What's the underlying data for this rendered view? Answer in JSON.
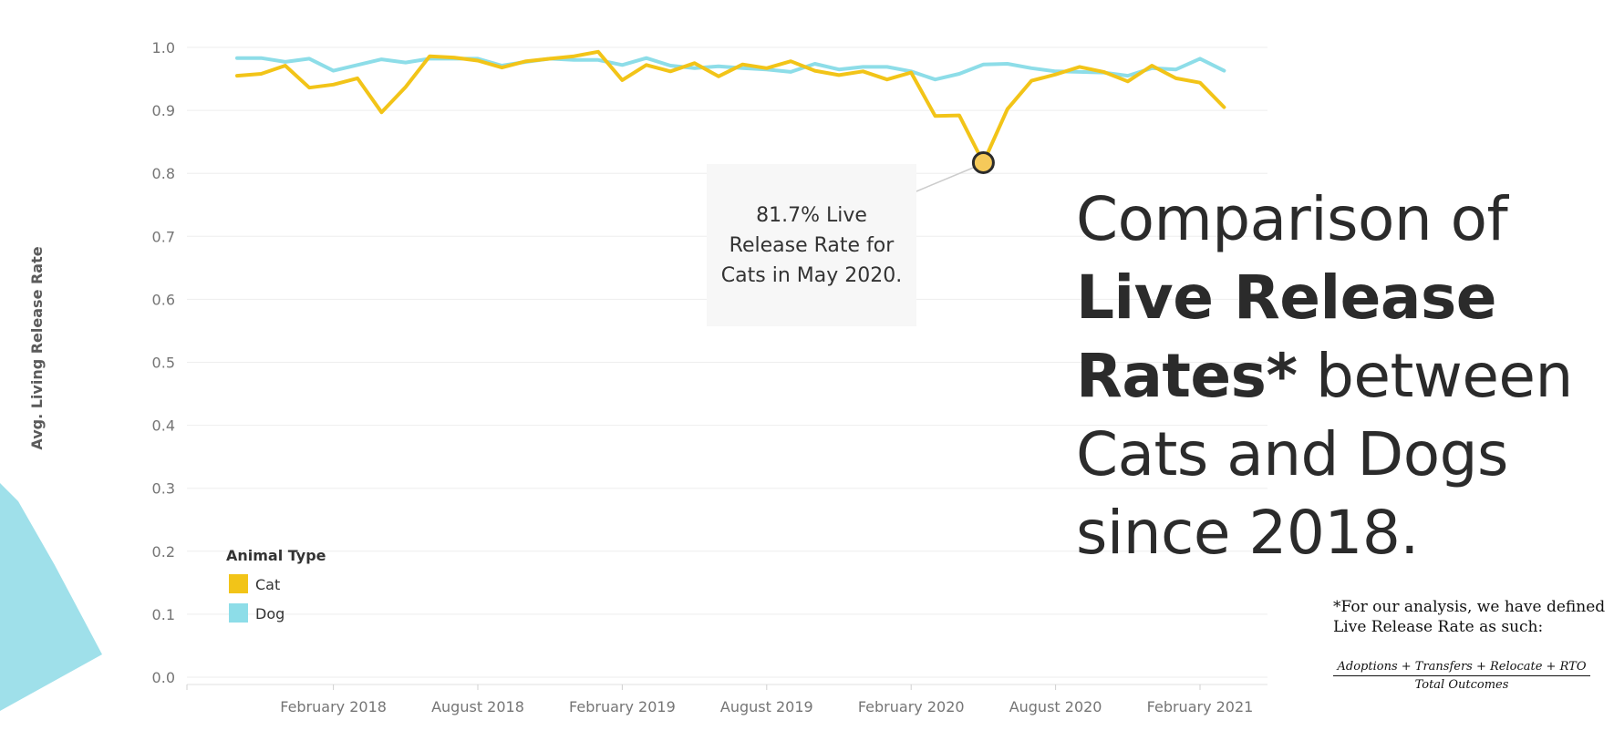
{
  "chart_data": {
    "type": "line",
    "ylabel": "Avg. Living Release Rate",
    "xlabel": "",
    "ylim": [
      0,
      1.0
    ],
    "y_ticks": [
      "0.0",
      "0.1",
      "0.2",
      "0.3",
      "0.4",
      "0.5",
      "0.6",
      "0.7",
      "0.8",
      "0.9",
      "1.0"
    ],
    "x_tick_labels": [
      "February 2018",
      "August 2018",
      "February 2019",
      "August 2019",
      "February 2020",
      "August 2020",
      "February 2021"
    ],
    "x": [
      "2017-10",
      "2017-11",
      "2017-12",
      "2018-01",
      "2018-02",
      "2018-03",
      "2018-04",
      "2018-05",
      "2018-06",
      "2018-07",
      "2018-08",
      "2018-09",
      "2018-10",
      "2018-11",
      "2018-12",
      "2019-01",
      "2019-02",
      "2019-03",
      "2019-04",
      "2019-05",
      "2019-06",
      "2019-07",
      "2019-08",
      "2019-09",
      "2019-10",
      "2019-11",
      "2019-12",
      "2020-01",
      "2020-02",
      "2020-03",
      "2020-04",
      "2020-05",
      "2020-06",
      "2020-07",
      "2020-08",
      "2020-09",
      "2020-10",
      "2020-11",
      "2020-12",
      "2021-01",
      "2021-02",
      "2021-03"
    ],
    "series": [
      {
        "name": "Cat",
        "color": "#f2c418",
        "values": [
          0.955,
          0.958,
          0.971,
          0.936,
          0.941,
          0.951,
          0.897,
          0.937,
          0.986,
          0.984,
          0.979,
          0.968,
          0.978,
          0.982,
          0.986,
          0.993,
          0.948,
          0.972,
          0.962,
          0.975,
          0.954,
          0.973,
          0.967,
          0.978,
          0.963,
          0.956,
          0.962,
          0.949,
          0.96,
          0.891,
          0.892,
          0.817,
          0.902,
          0.947,
          0.957,
          0.969,
          0.961,
          0.946,
          0.971,
          0.951,
          0.944,
          0.905
        ]
      },
      {
        "name": "Dog",
        "color": "#8ddde8",
        "values": [
          0.983,
          0.983,
          0.977,
          0.982,
          0.963,
          0.972,
          0.981,
          0.976,
          0.982,
          0.982,
          0.982,
          0.971,
          0.977,
          0.982,
          0.98,
          0.98,
          0.972,
          0.983,
          0.971,
          0.967,
          0.97,
          0.967,
          0.965,
          0.961,
          0.974,
          0.965,
          0.969,
          0.969,
          0.962,
          0.949,
          0.958,
          0.973,
          0.974,
          0.967,
          0.962,
          0.961,
          0.96,
          0.955,
          0.967,
          0.965,
          0.982,
          0.963
        ]
      }
    ],
    "highlight": {
      "series": "Cat",
      "x": "2020-05",
      "value": 0.817
    },
    "legend": {
      "title": "Animal Type",
      "position": "bottom-left"
    },
    "grid": true
  },
  "tooltip": {
    "lines": [
      "81.7% Live",
      "Release Rate for",
      "Cats in May 2020."
    ]
  },
  "headline": {
    "part1": "Comparison of",
    "bold1": "Live Release",
    "bold2": "Rates*",
    "part2": "between",
    "part3": "Cats and Dogs",
    "part4": "since 2018."
  },
  "footnote": {
    "text1": "*For our analysis, we have defined",
    "text2": "Live Release Rate as such:",
    "numerator": "Adoptions + Transfers + Relocate + RTO",
    "denominator": "Total Outcomes"
  },
  "colors": {
    "accent": "#8ddde8",
    "cat": "#f2c418",
    "dog": "#8ddde8"
  }
}
